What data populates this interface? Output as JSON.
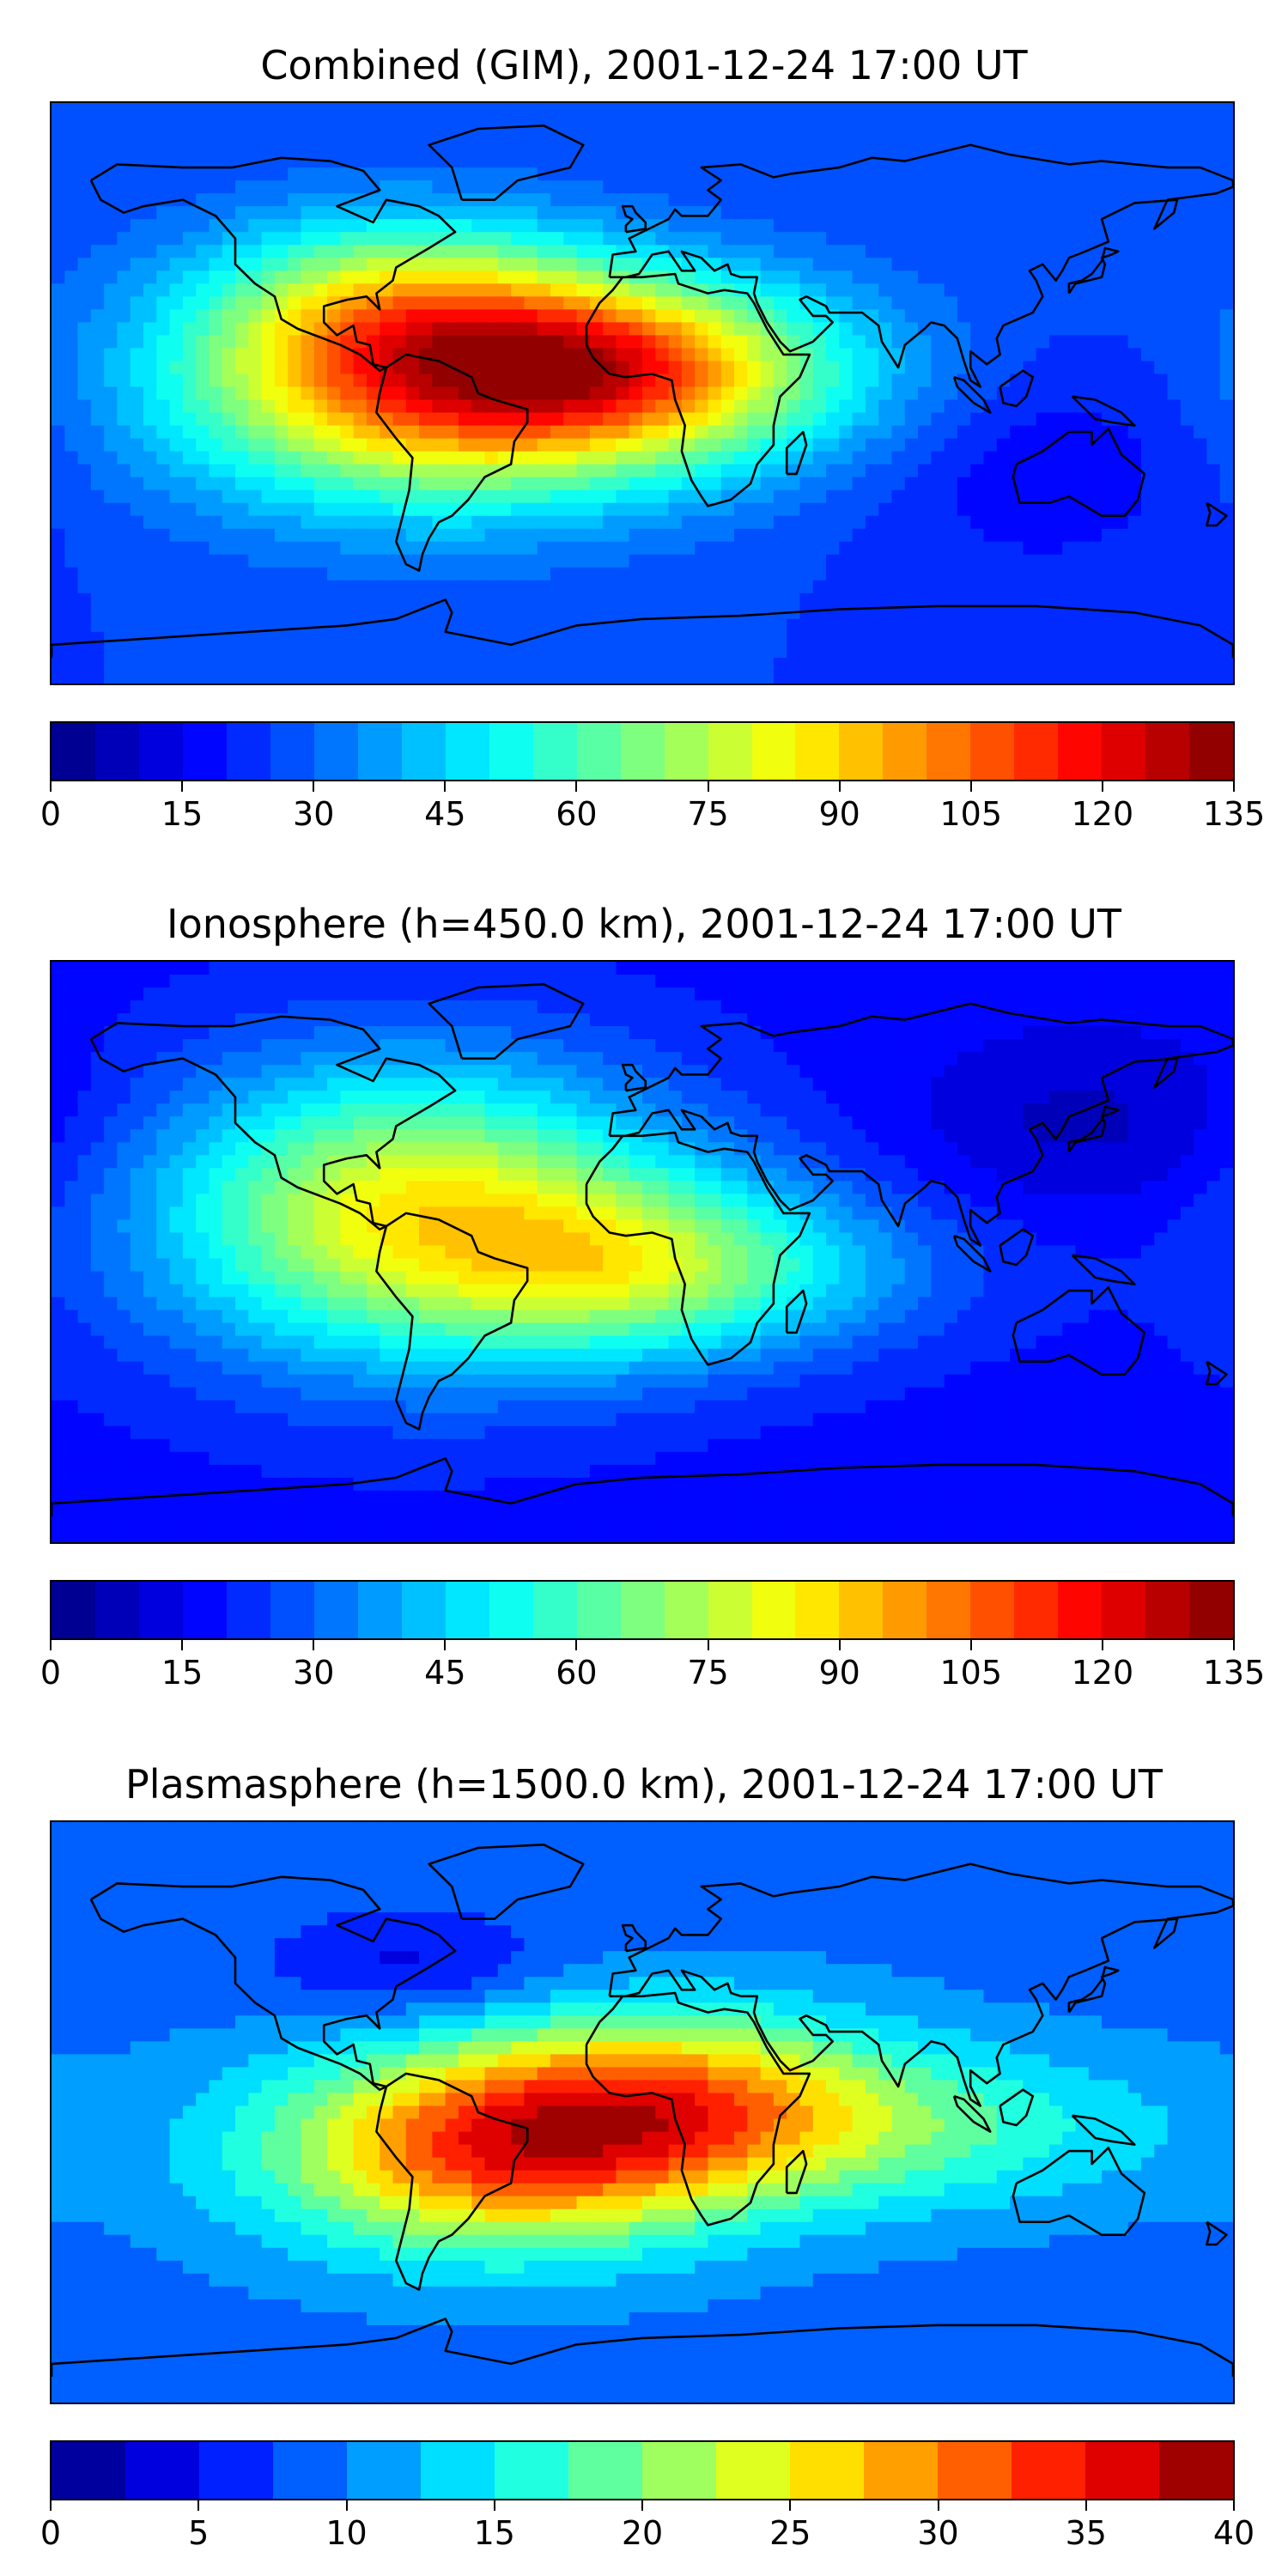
{
  "panels": [
    {
      "title": "Combined (GIM), 2001-12-24 17:00 UT",
      "colorbar": {
        "min": 0,
        "max": 135,
        "levels": 27,
        "tick_labels": [
          "0",
          "15",
          "30",
          "45",
          "60",
          "75",
          "90",
          "105",
          "120",
          "135"
        ]
      },
      "field": {
        "base": 25,
        "blobs": [
          {
            "lon": -65,
            "lat": 2,
            "sx": 55,
            "sy": 26,
            "amp": 70
          },
          {
            "lon": -12,
            "lat": 8,
            "sx": 40,
            "sy": 18,
            "amp": 45
          },
          {
            "lon": -75,
            "lat": 28,
            "sx": 40,
            "sy": 20,
            "amp": 30
          },
          {
            "lon": 30,
            "lat": 5,
            "sx": 50,
            "sy": 22,
            "amp": 20
          },
          {
            "lon": 120,
            "lat": -20,
            "sx": 40,
            "sy": 25,
            "amp": -10
          }
        ]
      }
    },
    {
      "title": "Ionosphere  (h=450.0 km), 2001-12-24 17:00 UT",
      "colorbar": {
        "min": 0,
        "max": 135,
        "levels": 27,
        "tick_labels": [
          "0",
          "15",
          "30",
          "45",
          "60",
          "75",
          "90",
          "105",
          "120",
          "135"
        ]
      },
      "field": {
        "base": 18,
        "blobs": [
          {
            "lon": -70,
            "lat": 12,
            "sx": 55,
            "sy": 32,
            "amp": 65
          },
          {
            "lon": -5,
            "lat": -5,
            "sx": 40,
            "sy": 20,
            "amp": 30
          },
          {
            "lon": 40,
            "lat": -5,
            "sx": 45,
            "sy": 18,
            "amp": 18
          },
          {
            "lon": 140,
            "lat": 40,
            "sx": 40,
            "sy": 20,
            "amp": -10
          }
        ]
      }
    },
    {
      "title": "Plasmasphere (h=1500.0 km), 2001-12-24 17:00 UT",
      "colorbar": {
        "min": 0,
        "max": 40,
        "levels": 16,
        "tick_labels": [
          "0",
          "5",
          "10",
          "15",
          "20",
          "25",
          "30",
          "35",
          "40"
        ]
      },
      "field": {
        "base": 9,
        "blobs": [
          {
            "lon": -45,
            "lat": -12,
            "sx": 50,
            "sy": 22,
            "amp": 22
          },
          {
            "lon": 10,
            "lat": 5,
            "sx": 45,
            "sy": 20,
            "amp": 14
          },
          {
            "lon": 80,
            "lat": -5,
            "sx": 60,
            "sy": 18,
            "amp": 8
          },
          {
            "lon": -70,
            "lat": 45,
            "sx": 30,
            "sy": 12,
            "amp": -5
          }
        ]
      }
    }
  ],
  "colors": {
    "cmap": [
      "#00007f",
      "#0000ff",
      "#007fff",
      "#00ffff",
      "#7fff7f",
      "#ffff00",
      "#ff7f00",
      "#ff0000",
      "#7f0000"
    ],
    "coastline": "#000000"
  }
}
